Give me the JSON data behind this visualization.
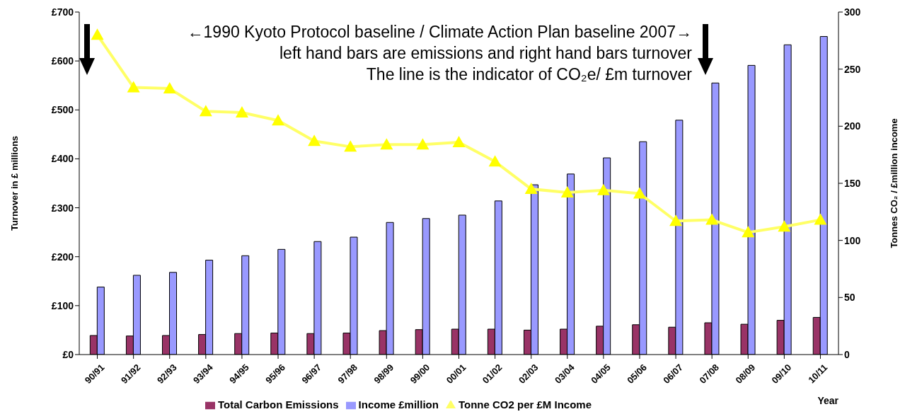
{
  "chart_data": {
    "type": "bar",
    "categories": [
      "90/91",
      "91/92",
      "92/93",
      "93/94",
      "94/95",
      "95/96",
      "96/97",
      "97/98",
      "98/99",
      "99/00",
      "00/01",
      "01/02",
      "02/03",
      "03/04",
      "04/05",
      "05/06",
      "06/07",
      "07/08",
      "08/09",
      "09/10",
      "10/11"
    ],
    "series": [
      {
        "name": "Total Carbon Emissions",
        "color": "#993366",
        "values": [
          39,
          38,
          39,
          41,
          43,
          44,
          43,
          44,
          49,
          51,
          52,
          52,
          50,
          52,
          58,
          61,
          56,
          65,
          62,
          70,
          76
        ]
      },
      {
        "name": "Income £million",
        "color": "#9999ff",
        "values": [
          138,
          162,
          168,
          193,
          202,
          215,
          231,
          240,
          270,
          278,
          285,
          314,
          347,
          369,
          402,
          435,
          479,
          555,
          591,
          633,
          650
        ]
      },
      {
        "name": "Tonne CO2 per £M Income",
        "type": "line",
        "axis": "y2",
        "color": "#ffff66",
        "values": [
          280,
          234,
          233,
          213,
          212,
          205,
          187,
          182,
          184,
          184,
          186,
          169,
          145,
          142,
          144,
          141,
          117,
          118,
          107,
          112,
          118
        ]
      }
    ],
    "ylim": [
      0,
      700
    ],
    "yticks": [
      {
        "value": 0,
        "label": "£0"
      },
      {
        "value": 100,
        "label": "£100"
      },
      {
        "value": 200,
        "label": "£200"
      },
      {
        "value": 300,
        "label": "£300"
      },
      {
        "value": 400,
        "label": "£400"
      },
      {
        "value": 500,
        "label": "£500"
      },
      {
        "value": 600,
        "label": "£600"
      },
      {
        "value": 700,
        "label": "£700"
      }
    ],
    "y2lim": [
      0,
      300
    ],
    "y2ticks": [
      0,
      50,
      100,
      150,
      200,
      250,
      300
    ],
    "xlabel": "Year",
    "ylabel": "Turnover in £ millions",
    "y2label": "Tonnes CO₂ / £million income",
    "annotations": [
      "←1990 Kyoto Protocol baseline / Climate Action Plan baseline 2007→",
      "left hand bars are emissions and right hand bars turnover",
      "The line is the indicator of CO₂e/ £m turnover"
    ],
    "marker": "triangle",
    "legend": "bottom",
    "grid": false
  }
}
